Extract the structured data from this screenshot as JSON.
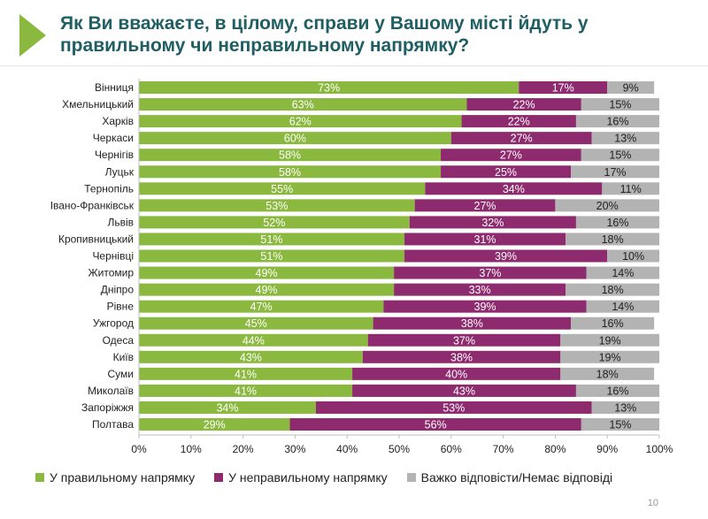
{
  "title": "Як Ви вважаєте, в цілому, справи у Вашому місті йдуть у правильному чи неправильному напрямку?",
  "page_number": "10",
  "colors": {
    "accent": "#8bb93f",
    "title": "#1f5e63",
    "right_direction": "#8bb93f",
    "wrong_direction": "#8e2a6e",
    "hard_to_say": "#b3b3b3"
  },
  "chart_data": {
    "type": "bar",
    "orientation": "horizontal",
    "stacked": true,
    "xlim": [
      0,
      100
    ],
    "x_ticks": [
      "0%",
      "10%",
      "20%",
      "30%",
      "40%",
      "50%",
      "60%",
      "70%",
      "80%",
      "90%",
      "100%"
    ],
    "grid": false,
    "legend_position": "bottom",
    "categories": [
      "Вінниця",
      "Хмельницький",
      "Харків",
      "Черкаси",
      "Чернігів",
      "Луцьк",
      "Тернопіль",
      "Івано-Франківськ",
      "Львів",
      "Кропивницький",
      "Чернівці",
      "Житомир",
      "Дніпро",
      "Рівне",
      "Ужгород",
      "Одеса",
      "Київ",
      "Суми",
      "Миколаїв",
      "Запоріжжя",
      "Полтава"
    ],
    "series": [
      {
        "name": "У правильному напрямку",
        "color": "#8bb93f",
        "values": [
          73,
          63,
          62,
          60,
          58,
          58,
          55,
          53,
          52,
          51,
          51,
          49,
          49,
          47,
          45,
          44,
          43,
          41,
          41,
          34,
          29
        ]
      },
      {
        "name": "У неправильному напрямку",
        "color": "#8e2a6e",
        "values": [
          17,
          22,
          22,
          27,
          27,
          25,
          34,
          27,
          32,
          31,
          39,
          37,
          33,
          39,
          38,
          37,
          38,
          40,
          43,
          53,
          56
        ]
      },
      {
        "name": "Важко відповісти/Немає відповіді",
        "color": "#b3b3b3",
        "values": [
          9,
          15,
          16,
          13,
          15,
          17,
          11,
          20,
          16,
          18,
          10,
          14,
          18,
          14,
          16,
          19,
          19,
          18,
          16,
          13,
          15
        ]
      }
    ]
  }
}
